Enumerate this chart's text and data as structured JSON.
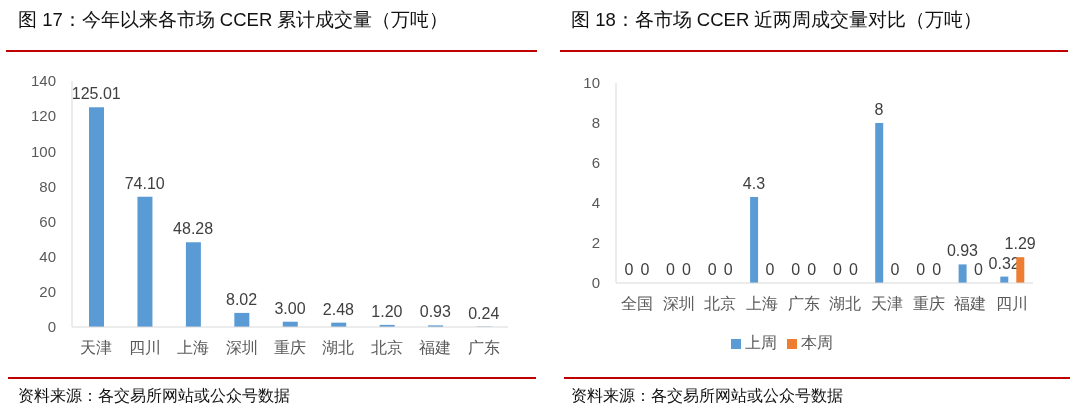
{
  "chart_data": [
    {
      "type": "bar",
      "title": "图 17：今年以来各市场 CCER 累计成交量（万吨）",
      "categories": [
        "天津",
        "四川",
        "上海",
        "深圳",
        "重庆",
        "湖北",
        "北京",
        "福建",
        "广东"
      ],
      "values": [
        125.01,
        74.1,
        48.28,
        8.02,
        3,
        2.48,
        1.2,
        0.93,
        0.24
      ],
      "color": "#5b9bd5",
      "value_labels": [
        "125.01",
        "74.10",
        "48.28",
        "8.02",
        "3.00",
        "2.48",
        "1.20",
        "0.93",
        "0.24"
      ],
      "ylim": [
        0,
        140
      ],
      "yticks": [
        0,
        20,
        40,
        60,
        80,
        100,
        120,
        140
      ],
      "annotations": [
        "资料来源：各交易所网站或公众号数据"
      ]
    },
    {
      "type": "bar",
      "title": "图 18：各市场 CCER 近两周成交量对比（万吨）",
      "categories": [
        "全国",
        "深圳",
        "北京",
        "上海",
        "广东",
        "湖北",
        "天津",
        "重庆",
        "福建",
        "四川"
      ],
      "series": [
        {
          "name": "上周",
          "color": "#5b9bd5",
          "values": [
            0,
            0,
            0,
            4.3,
            0,
            0,
            8,
            0,
            0.93,
            0.32
          ]
        },
        {
          "name": "本周",
          "color": "#ed7d31",
          "values": [
            0,
            0,
            0,
            0,
            0,
            0,
            0,
            0,
            0,
            1.29
          ]
        }
      ],
      "ylim": [
        0,
        10
      ],
      "yticks": [
        0,
        2,
        4,
        6,
        8,
        10
      ],
      "data_labels": true,
      "legend": "bottom",
      "annotations": [
        "资料来源：各交易所网站或公众号数据"
      ]
    }
  ]
}
